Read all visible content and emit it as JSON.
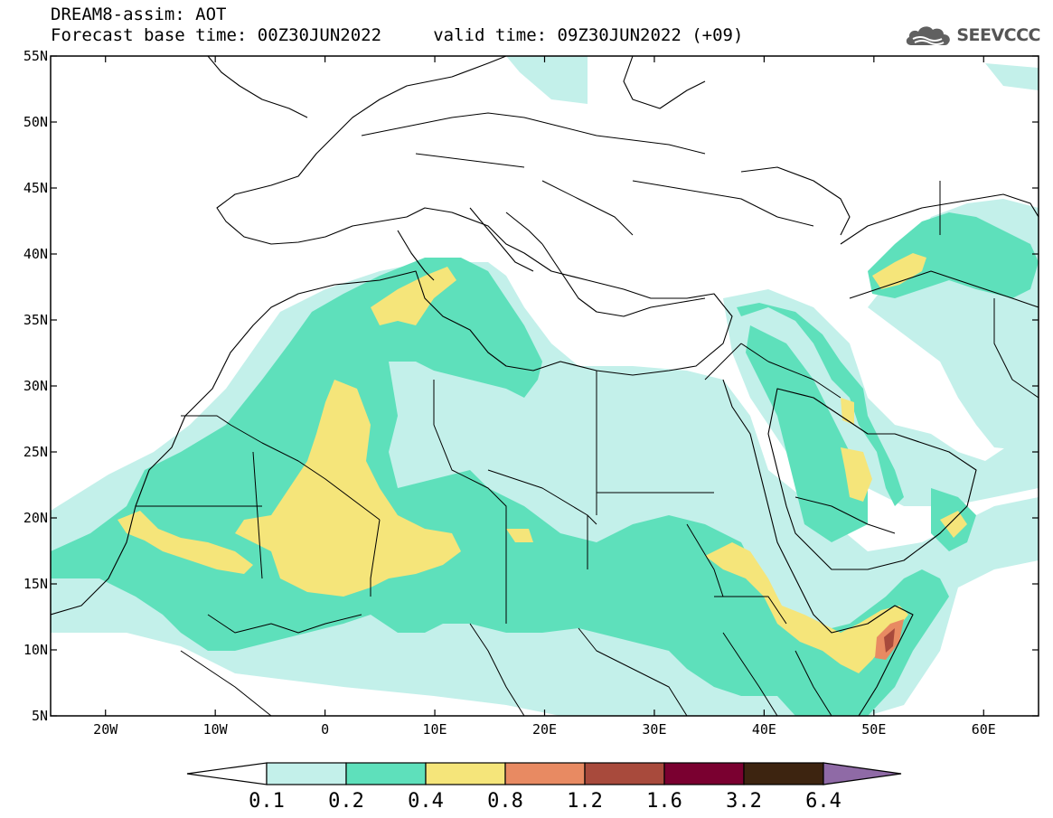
{
  "header": {
    "line1": "DREAM8-assim: AOT",
    "line2": "Forecast base time: 00Z30JUN2022     valid time: 09Z30JUN2022 (+09)",
    "logo_text": "SEEVCCC"
  },
  "map": {
    "lon_range": [
      -25,
      65
    ],
    "lat_range": [
      5,
      55
    ],
    "lon_ticks": [
      {
        "lon": -20,
        "label": "20W"
      },
      {
        "lon": -10,
        "label": "10W"
      },
      {
        "lon": 0,
        "label": "0"
      },
      {
        "lon": 10,
        "label": "10E"
      },
      {
        "lon": 20,
        "label": "20E"
      },
      {
        "lon": 30,
        "label": "30E"
      },
      {
        "lon": 40,
        "label": "40E"
      },
      {
        "lon": 50,
        "label": "50E"
      },
      {
        "lon": 60,
        "label": "60E"
      }
    ],
    "lat_ticks": [
      {
        "lat": 55,
        "label": "55N"
      },
      {
        "lat": 50,
        "label": "50N"
      },
      {
        "lat": 45,
        "label": "45N"
      },
      {
        "lat": 40,
        "label": "40N"
      },
      {
        "lat": 35,
        "label": "35N"
      },
      {
        "lat": 30,
        "label": "30N"
      },
      {
        "lat": 25,
        "label": "25N"
      },
      {
        "lat": 20,
        "label": "20N"
      },
      {
        "lat": 15,
        "label": "15N"
      },
      {
        "lat": 10,
        "label": "10N"
      },
      {
        "lat": 5,
        "label": "5N"
      }
    ]
  },
  "colorbar": {
    "labels": [
      "0.1",
      "0.2",
      "0.4",
      "0.8",
      "1.2",
      "1.6",
      "3.2",
      "6.4"
    ],
    "colors": [
      "#ffffff",
      "#c3f0ea",
      "#5ee0bb",
      "#f5e57a",
      "#e88a62",
      "#a84a3c",
      "#7a0030",
      "#3d2410",
      "#8f6aa6"
    ]
  }
}
